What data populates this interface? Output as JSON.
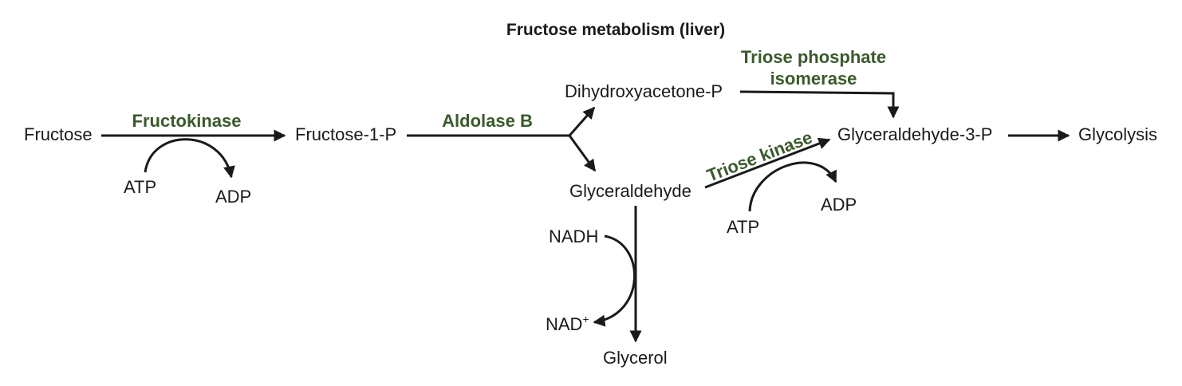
{
  "title": "Fructose metabolism (liver)",
  "colors": {
    "text": "#1a1a1a",
    "enzyme": "#3a5a2c"
  },
  "metabolites": {
    "fructose": "Fructose",
    "fructose_1_p": "Fructose-1-P",
    "dhap": "Dihydroxyacetone-P",
    "glyceraldehyde": "Glyceraldehyde",
    "g3p": "Glyceraldehyde-3-P",
    "glycolysis": "Glycolysis",
    "glycerol": "Glycerol"
  },
  "enzymes": {
    "fructokinase": "Fructokinase",
    "aldolase_b": "Aldolase B",
    "tpi_line1": "Triose phosphate",
    "tpi_line2": "isomerase",
    "triose_kinase": "Triose kinase"
  },
  "cofactors": {
    "atp_1": "ATP",
    "adp_1": "ADP",
    "atp_2": "ATP",
    "adp_2": "ADP",
    "nadh": "NADH",
    "nad": "NAD",
    "nad_charge": "+"
  }
}
